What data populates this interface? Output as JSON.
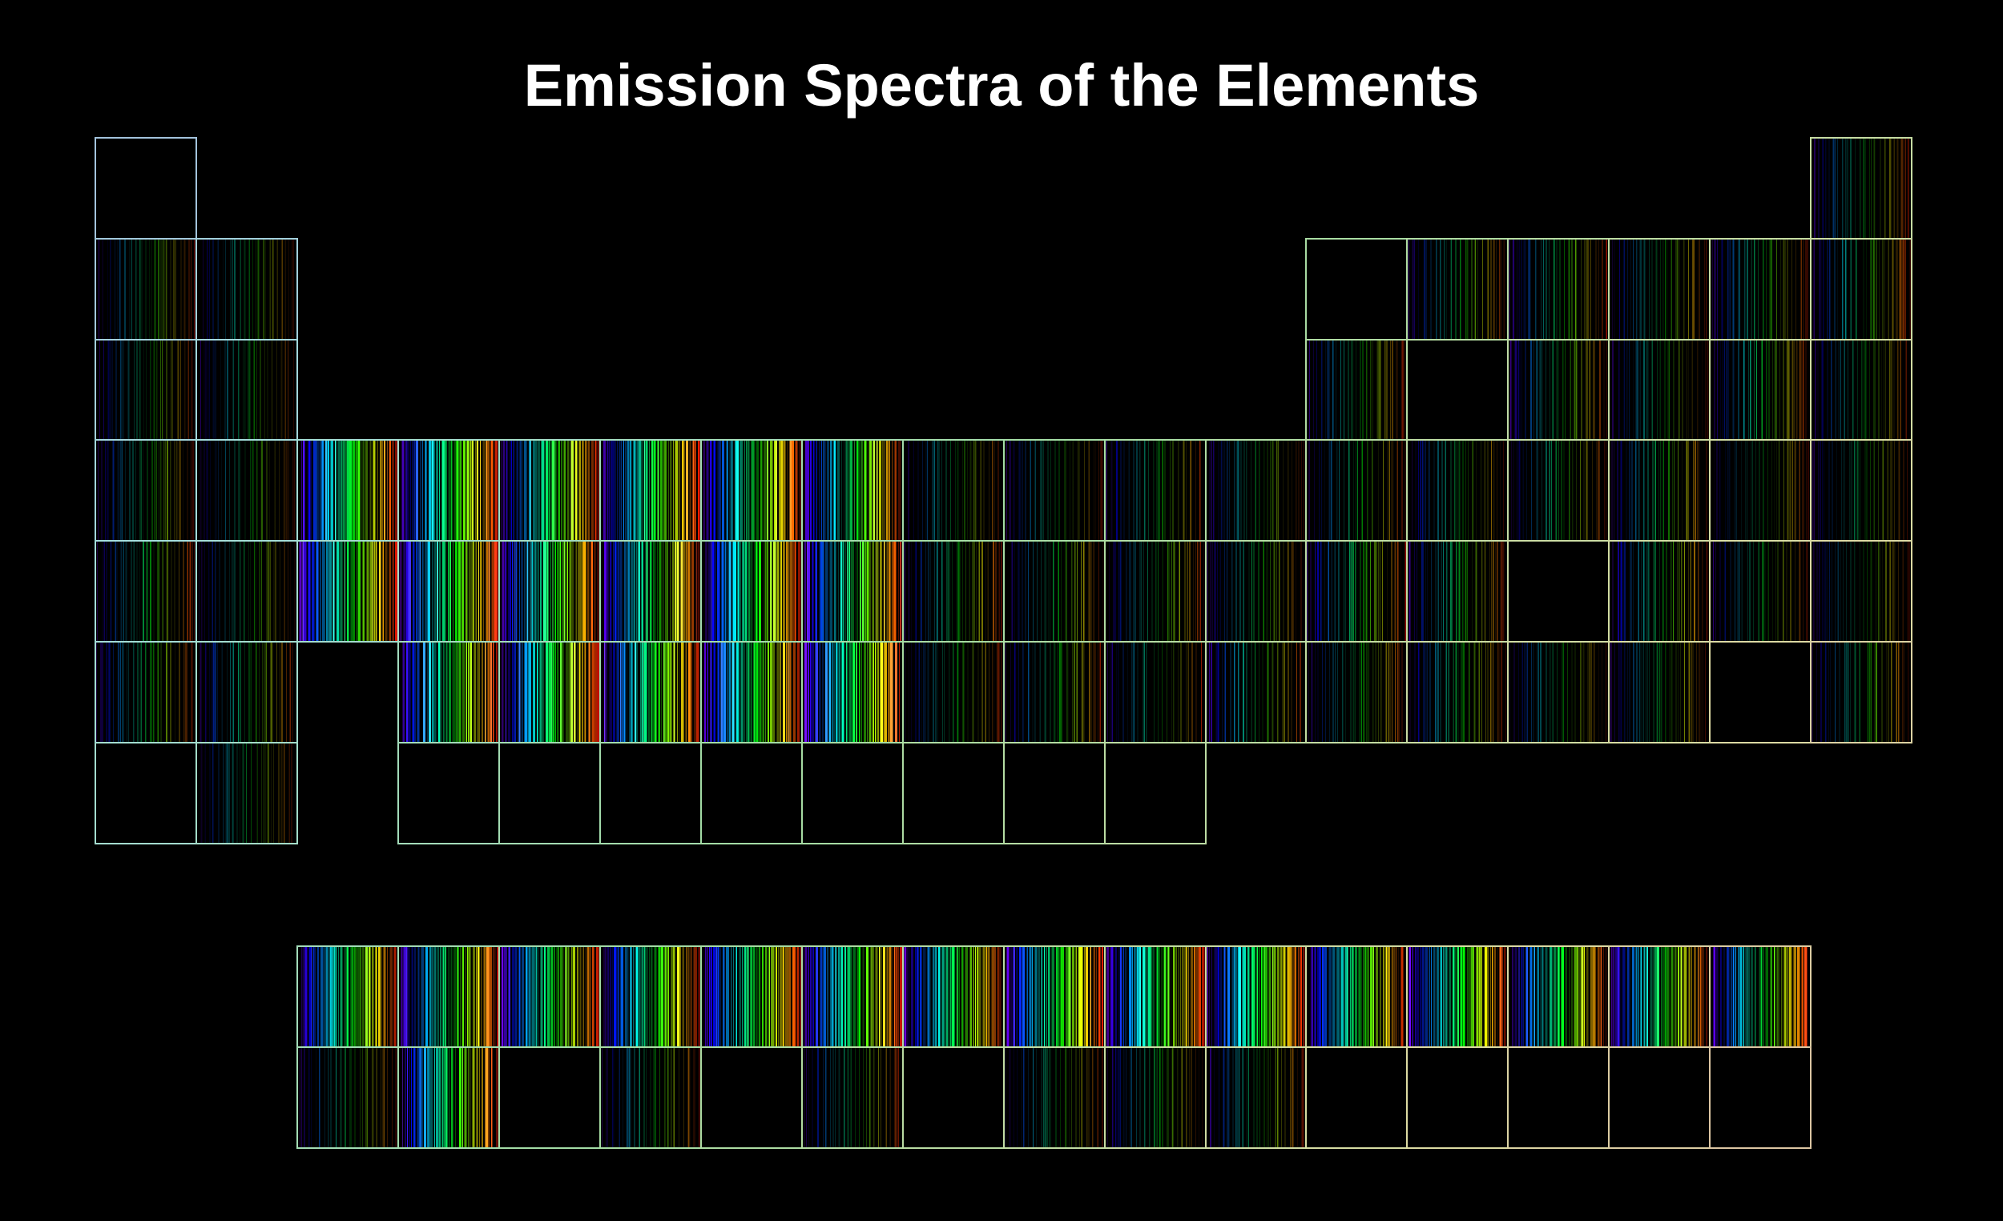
{
  "title": "Emission Spectra of the Elements"
}
